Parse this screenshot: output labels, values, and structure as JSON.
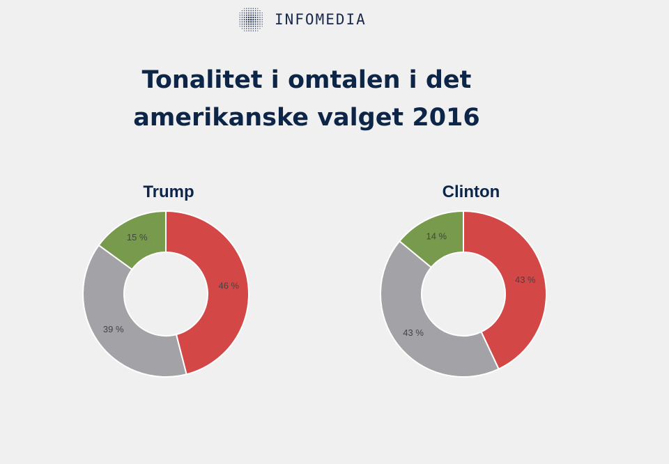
{
  "brand": {
    "name": "INFOMEDIA",
    "logo_icon": "dot-globe-icon",
    "color": "#18284a"
  },
  "title": {
    "line1": "Tonalitet i omtalen i det",
    "line2": "amerikanske valget 2016"
  },
  "colors": {
    "background": "#f0f0f0",
    "title": "#0d2547"
  },
  "chart_data": [
    {
      "type": "pie",
      "donut": true,
      "title": "Trump",
      "slices": [
        {
          "value": 46,
          "label": "46 %",
          "color": "#d34747"
        },
        {
          "value": 39,
          "label": "39 %",
          "color": "#a3a2a6"
        },
        {
          "value": 15,
          "label": "15 %",
          "color": "#779a4c"
        }
      ]
    },
    {
      "type": "pie",
      "donut": true,
      "title": "Clinton",
      "slices": [
        {
          "value": 43,
          "label": "43 %",
          "color": "#d34747"
        },
        {
          "value": 43,
          "label": "43 %",
          "color": "#a3a2a6"
        },
        {
          "value": 14,
          "label": "14 %",
          "color": "#779a4c"
        }
      ]
    }
  ]
}
